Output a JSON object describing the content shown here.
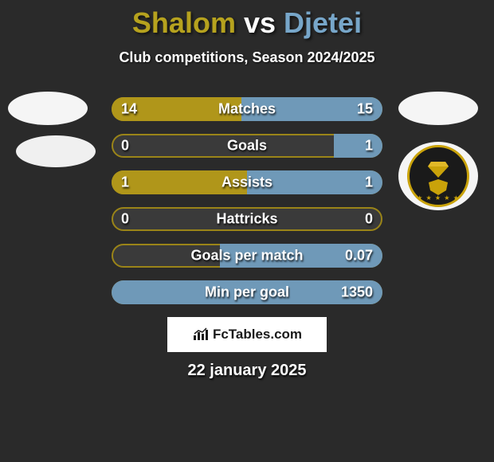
{
  "title": {
    "player1": "Shalom",
    "vs": "vs",
    "player2": "Djetei",
    "player1_color": "#b6a21e",
    "vs_color": "#ffffff",
    "player2_color": "#77a6c9"
  },
  "subtitle": "Club competitions, Season 2024/2025",
  "colors": {
    "background": "#2a2a2a",
    "p1_bar": "#b0961a",
    "p2_bar": "#6f99b8",
    "track": "#3a3a3a",
    "track_border": "#9a8418"
  },
  "bar_style": {
    "height": 30,
    "gap": 16,
    "radius": 15,
    "label_fontsize": 18,
    "value_fontsize": 18
  },
  "stats": [
    {
      "label": "Matches",
      "p1_text": "14",
      "p2_text": "15",
      "p1_pct": 48,
      "p2_pct": 52
    },
    {
      "label": "Goals",
      "p1_text": "0",
      "p2_text": "1",
      "p1_pct": 0,
      "p2_pct": 18
    },
    {
      "label": "Assists",
      "p1_text": "1",
      "p2_text": "1",
      "p1_pct": 50,
      "p2_pct": 50
    },
    {
      "label": "Hattricks",
      "p1_text": "0",
      "p2_text": "0",
      "p1_pct": 0,
      "p2_pct": 0
    },
    {
      "label": "Goals per match",
      "p1_text": "",
      "p2_text": "0.07",
      "p1_pct": 0,
      "p2_pct": 60
    },
    {
      "label": "Min per goal",
      "p1_text": "",
      "p2_text": "1350",
      "p1_pct": 0,
      "p2_pct": 100
    }
  ],
  "watermark": "FcTables.com",
  "date": "22 january 2025",
  "badge": {
    "ring_color": "#c9a20a",
    "inner_bg": "#141414",
    "diamond_color": "#c9a20a"
  }
}
